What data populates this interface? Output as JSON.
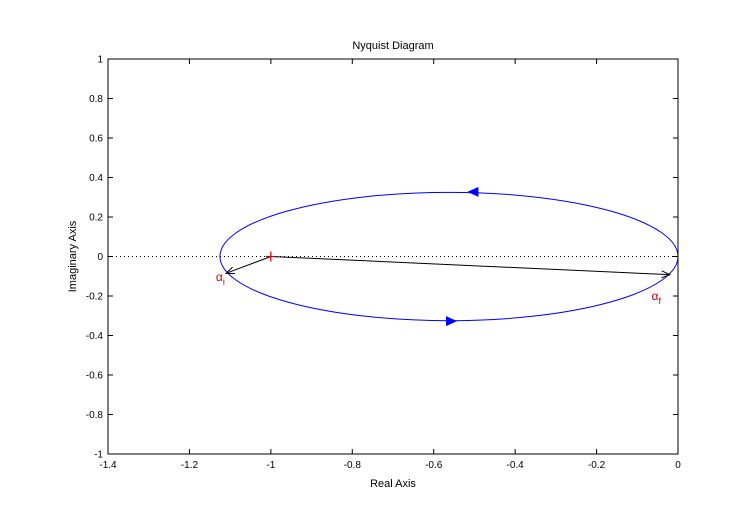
{
  "chart_data": {
    "type": "line",
    "title": "Nyquist Diagram",
    "xlabel": "Real Axis",
    "ylabel": "Imaginary Axis",
    "xlim": [
      -1.4,
      0
    ],
    "ylim": [
      -1,
      1
    ],
    "xticks": [
      -1.4,
      -1.2,
      -1,
      -0.8,
      -0.6,
      -0.4,
      -0.2,
      0
    ],
    "xtick_labels": [
      "-1.4",
      "-1.2",
      "-1",
      "-0.8",
      "-0.6",
      "-0.4",
      "-0.2",
      "0"
    ],
    "yticks": [
      -1,
      -0.8,
      -0.6,
      -0.4,
      -0.2,
      0,
      0.2,
      0.4,
      0.6,
      0.8,
      1
    ],
    "ytick_labels": [
      "-1",
      "-0.8",
      "-0.6",
      "-0.4",
      "-0.2",
      "0",
      "0.2",
      "0.4",
      "0.6",
      "0.8",
      "1"
    ],
    "grid": false,
    "series": [
      {
        "color": "#0000ff",
        "curve": "ellipse",
        "center": [
          -0.5625,
          0
        ],
        "semi_axes": [
          0.5625,
          0.325
        ],
        "direction_arrows": [
          {
            "at": [
              -0.555,
              -0.327
            ],
            "direction": "right"
          },
          {
            "at": [
              -0.505,
              0.327
            ],
            "direction": "left"
          }
        ]
      }
    ],
    "zero_line": {
      "y": 0,
      "style": "dotted",
      "color": "#000000"
    },
    "critical_point": {
      "x": -1,
      "y": 0,
      "marker": "+",
      "color": "#cc0000"
    },
    "vectors": [
      {
        "from": [
          -1,
          0
        ],
        "to": [
          -1.11,
          -0.085
        ],
        "color": "#000000"
      },
      {
        "from": [
          -1,
          0
        ],
        "to": [
          -0.02,
          -0.092
        ],
        "color": "#000000"
      }
    ],
    "annotations": [
      {
        "symbol": "α",
        "sub": "i",
        "x": -1.135,
        "y": -0.125,
        "color": "#cc0000"
      },
      {
        "symbol": "α",
        "sub": "f",
        "x": -0.065,
        "y": -0.22,
        "color": "#cc0000"
      }
    ]
  }
}
